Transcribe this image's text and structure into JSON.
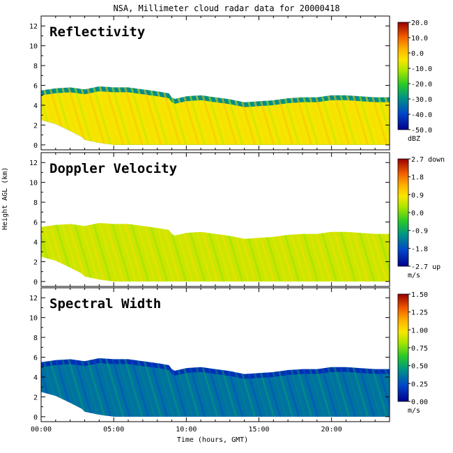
{
  "title": "NSA, Millimeter cloud radar data for 20000418",
  "y_axis_label": "Height AGL (km)",
  "x_axis_label": "Time (hours, GMT)",
  "chart_data": {
    "type": "heatmap",
    "title": "NSA, Millimeter cloud radar data for 20000418",
    "xlabel": "Time (hours, GMT)",
    "ylabel": "Height AGL (km)",
    "xlim": [
      0,
      24
    ],
    "ylim": [
      -0.5,
      13
    ],
    "x_ticks": [
      "00:00",
      "05:00",
      "10:00",
      "15:00",
      "20:00"
    ],
    "x_tick_values": [
      0,
      5,
      10,
      15,
      20
    ],
    "y_ticks": [
      "0",
      "2",
      "4",
      "6",
      "8",
      "10",
      "12"
    ],
    "cloud_top_km": [
      [
        0,
        5.5
      ],
      [
        1,
        5.7
      ],
      [
        2,
        5.8
      ],
      [
        3,
        5.6
      ],
      [
        4,
        5.9
      ],
      [
        5,
        5.8
      ],
      [
        6,
        5.8
      ],
      [
        7,
        5.6
      ],
      [
        8,
        5.4
      ],
      [
        8.8,
        5.2
      ],
      [
        9.1,
        4.6
      ],
      [
        10,
        4.9
      ],
      [
        11,
        5.0
      ],
      [
        12,
        4.8
      ],
      [
        13,
        4.6
      ],
      [
        14,
        4.3
      ],
      [
        15,
        4.4
      ],
      [
        16,
        4.5
      ],
      [
        17,
        4.7
      ],
      [
        18,
        4.8
      ],
      [
        19,
        4.8
      ],
      [
        20,
        5.0
      ],
      [
        21,
        5.0
      ],
      [
        22,
        4.9
      ],
      [
        23,
        4.8
      ],
      [
        24,
        4.8
      ]
    ],
    "cloud_base_km": [
      [
        0,
        2.5
      ],
      [
        1,
        2.1
      ],
      [
        2,
        1.4
      ],
      [
        2.8,
        0.8
      ],
      [
        3,
        0.5
      ],
      [
        4,
        0.2
      ],
      [
        5,
        0
      ],
      [
        24,
        0
      ]
    ],
    "panels": [
      {
        "name": "Reflectivity",
        "units": "dBZ",
        "colorbar_ticks": [
          "20.0",
          "10.0",
          "0.0",
          "-10.0",
          "-20.0",
          "-30.0",
          "-40.0",
          "-50.0"
        ],
        "range": [
          -50,
          20
        ],
        "typical_core_value": -5,
        "cloud_edge_value": -30
      },
      {
        "name": "Doppler Velocity",
        "units": "m/s",
        "colorbar_ticks": [
          "2.7 down",
          "1.8",
          "0.9",
          "0.0",
          "-0.9",
          "-1.8",
          "-2.7 up"
        ],
        "range": [
          -2.7,
          2.7
        ],
        "typical_core_value": 0.5,
        "cloud_edge_value": 0.5
      },
      {
        "name": "Spectral Width",
        "units": "m/s",
        "colorbar_ticks": [
          "1.50",
          "1.25",
          "1.00",
          "0.75",
          "0.50",
          "0.25",
          "0.00"
        ],
        "range": [
          0,
          1.5
        ],
        "typical_core_value": 0.35,
        "cloud_edge_value": 0.15
      }
    ]
  }
}
